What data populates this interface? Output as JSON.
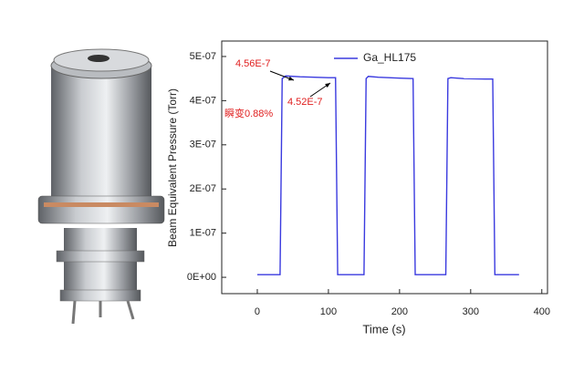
{
  "chart_data": {
    "type": "line",
    "y_label": "Beam Equivalent Pressure (Torr)",
    "x_label": "Time (s)",
    "x": [
      0,
      32,
      35,
      40,
      60,
      100,
      110,
      113,
      150,
      153,
      156,
      170,
      200,
      219,
      222,
      265,
      268,
      272,
      290,
      320,
      331,
      334,
      368
    ],
    "series": [
      {
        "name": "Ga_HL175",
        "color": "#3a3adf",
        "values": [
          6e-09,
          6e-09,
          4.5e-07,
          4.56e-07,
          4.54e-07,
          4.52e-07,
          4.52e-07,
          6e-09,
          6e-09,
          4.5e-07,
          4.55e-07,
          4.53e-07,
          4.51e-07,
          4.5e-07,
          6e-09,
          6e-09,
          4.5e-07,
          4.52e-07,
          4.5e-07,
          4.49e-07,
          4.49e-07,
          6e-09,
          6e-09
        ]
      }
    ],
    "xlim": [
      -50,
      408
    ],
    "xticks": [
      0,
      100,
      200,
      300,
      400
    ],
    "ylim": [
      -3.7e-08,
      5.35e-07
    ],
    "yticks": [
      {
        "value": 0,
        "label": "0E+00"
      },
      {
        "value": 1e-07,
        "label": "1E-07"
      },
      {
        "value": 2e-07,
        "label": "2E-07"
      },
      {
        "value": 3e-07,
        "label": "3E-07"
      },
      {
        "value": 4e-07,
        "label": "4E-07"
      },
      {
        "value": 5e-07,
        "label": "5E-07"
      }
    ],
    "legend": "top-right",
    "annotations": [
      {
        "text": "4.56E-7",
        "color": "#e02020"
      },
      {
        "text": "4.52E-7",
        "color": "#e02020"
      },
      {
        "text": "瞬变0.88%",
        "color": "#e02020"
      }
    ]
  }
}
